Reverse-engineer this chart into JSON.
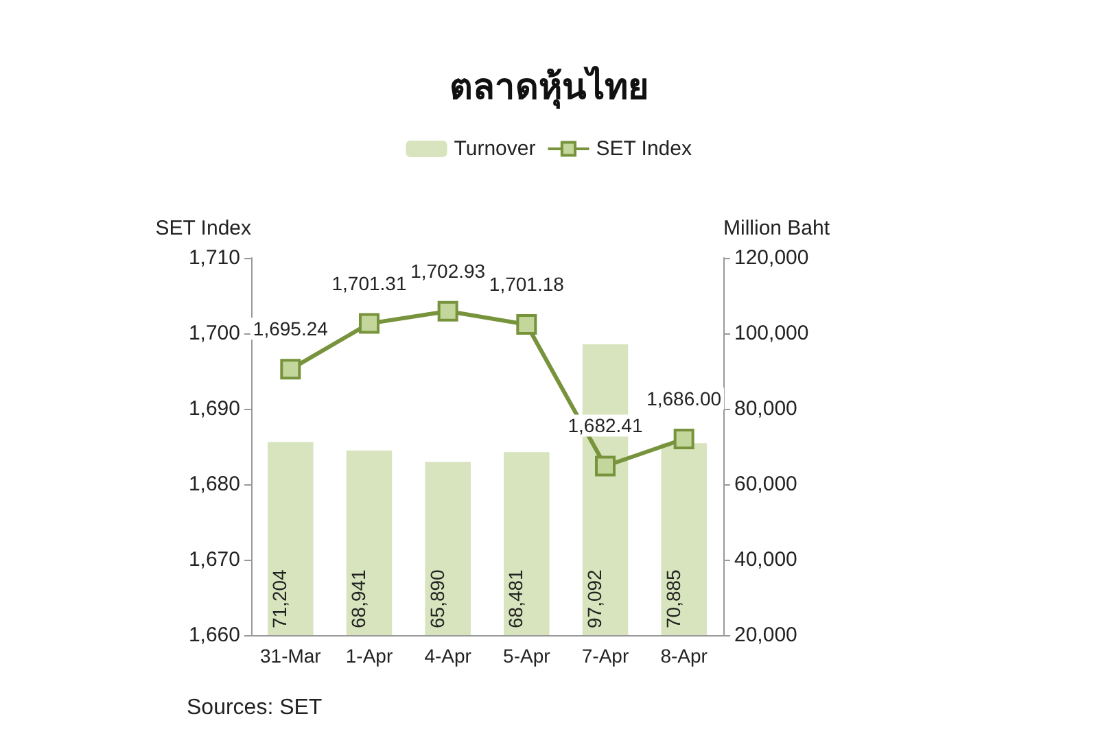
{
  "chart_data": {
    "type": "bar",
    "title": "ตลาดหุ้นไทย",
    "ylabel": "SET Index",
    "y2label": "Million Baht",
    "categories": [
      "31-Mar",
      "1-Apr",
      "4-Apr",
      "5-Apr",
      "7-Apr",
      "8-Apr"
    ],
    "series": [
      {
        "name": "Turnover",
        "axis": "y2",
        "color": "#d7e4bd",
        "values": [
          71204,
          68941,
          65890,
          68481,
          97092,
          70885
        ],
        "value_labels": [
          "71,204",
          "68,941",
          "65,890",
          "68,481",
          "97,092",
          "70,885"
        ]
      },
      {
        "name": "SET Index",
        "type": "line",
        "axis": "y",
        "color": "#77933c",
        "marker": "square",
        "values": [
          1695.24,
          1701.31,
          1702.93,
          1701.18,
          1682.41,
          1686.0
        ],
        "value_labels": [
          "1,695.24",
          "1,701.31",
          "1,702.93",
          "1,701.18",
          "1,682.41",
          "1,686.00"
        ]
      }
    ],
    "ylim": [
      1660,
      1710
    ],
    "yticks": [
      {
        "value": 1660,
        "label": "1,660"
      },
      {
        "value": 1670,
        "label": "1,670"
      },
      {
        "value": 1680,
        "label": "1,680"
      },
      {
        "value": 1690,
        "label": "1,690"
      },
      {
        "value": 1700,
        "label": "1,700"
      },
      {
        "value": 1710,
        "label": "1,710"
      }
    ],
    "y2lim": [
      20000,
      120000
    ],
    "y2ticks": [
      {
        "value": 20000,
        "label": "20,000"
      },
      {
        "value": 40000,
        "label": "40,000"
      },
      {
        "value": 60000,
        "label": "60,000"
      },
      {
        "value": 80000,
        "label": "80,000"
      },
      {
        "value": 100000,
        "label": "100,000"
      },
      {
        "value": 120000,
        "label": "120,000"
      }
    ],
    "legend": "top",
    "grid": false,
    "annotations": [
      "Sources: SET"
    ]
  }
}
